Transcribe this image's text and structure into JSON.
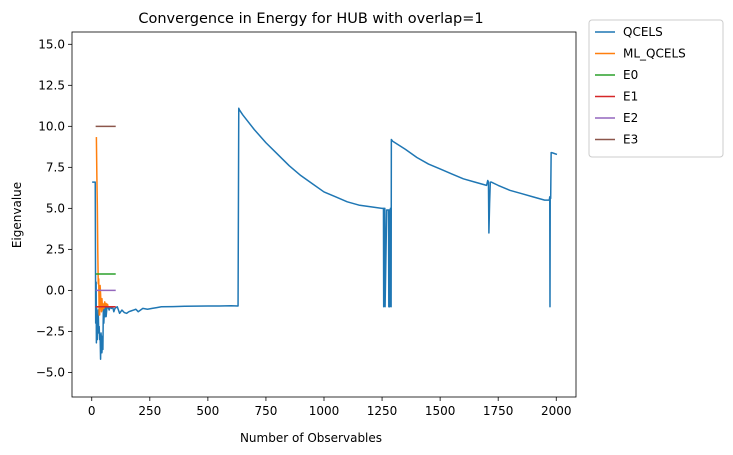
{
  "chart_data": {
    "type": "line",
    "title": "Convergence in Energy for HUB with overlap=1",
    "xlabel": "Number of Observables",
    "ylabel": "Eigenvalue",
    "xlim": [
      -85,
      2085
    ],
    "ylim": [
      -6.5,
      15.75
    ],
    "xticks": [
      0,
      250,
      500,
      750,
      1000,
      1250,
      1500,
      1750,
      2000
    ],
    "yticks": [
      -5.0,
      -2.5,
      0.0,
      2.5,
      5.0,
      7.5,
      10.0,
      12.5,
      15.0
    ],
    "xtick_labels": [
      "0",
      "250",
      "500",
      "750",
      "1000",
      "1250",
      "1500",
      "1750",
      "2000"
    ],
    "ytick_labels": [
      "−5.0",
      "−2.5",
      "0.0",
      "2.5",
      "5.0",
      "7.5",
      "10.0",
      "12.5",
      "15.0"
    ],
    "grid": false,
    "legend_position": "outside-top-right",
    "series": [
      {
        "name": "QCELS",
        "color": "#1f77b4",
        "x": [
          5,
          15,
          17,
          19,
          20,
          21,
          22,
          23,
          24,
          25,
          26,
          27,
          28,
          30,
          32,
          34,
          36,
          38,
          40,
          42,
          44,
          46,
          48,
          50,
          52,
          55,
          58,
          60,
          62,
          65,
          70,
          75,
          80,
          85,
          90,
          95,
          100,
          110,
          120,
          130,
          140,
          150,
          160,
          170,
          180,
          190,
          200,
          220,
          240,
          260,
          280,
          300,
          350,
          400,
          450,
          500,
          550,
          600,
          630,
          633,
          636,
          650,
          700,
          750,
          800,
          850,
          900,
          950,
          1000,
          1050,
          1100,
          1150,
          1200,
          1250,
          1256,
          1257,
          1258,
          1262,
          1263,
          1270,
          1278,
          1279,
          1280,
          1282,
          1283,
          1286,
          1288,
          1289,
          1290,
          1295,
          1350,
          1400,
          1450,
          1500,
          1550,
          1600,
          1650,
          1700,
          1705,
          1708,
          1710,
          1713,
          1716,
          1720,
          1750,
          1800,
          1850,
          1900,
          1950,
          1970,
          1972,
          1973,
          1974,
          1976,
          1978,
          1980,
          1990,
          2000
        ],
        "y": [
          6.6,
          6.6,
          -2.0,
          0.5,
          -3.2,
          -1.0,
          -2.5,
          -1.5,
          -3.0,
          -2.0,
          -1.8,
          -2.5,
          -1.2,
          -2.6,
          -2.2,
          -3.0,
          -2.7,
          -4.2,
          -2.6,
          -3.0,
          -3.8,
          -2.8,
          -3.6,
          -1.0,
          -2.0,
          -1.0,
          -1.6,
          -1.0,
          -1.6,
          -1.1,
          -1.0,
          -1.2,
          -1.0,
          -1.1,
          -1.0,
          -1.3,
          -1.1,
          -1.0,
          -1.4,
          -1.2,
          -1.35,
          -1.4,
          -1.3,
          -1.25,
          -1.2,
          -1.15,
          -1.3,
          -1.1,
          -1.15,
          -1.1,
          -1.05,
          -1.0,
          -0.99,
          -0.97,
          -0.96,
          -0.95,
          -0.95,
          -0.94,
          -0.95,
          11.1,
          11.0,
          10.7,
          9.8,
          9.0,
          8.3,
          7.6,
          7.0,
          6.5,
          6.0,
          5.7,
          5.4,
          5.2,
          5.1,
          5.0,
          5.0,
          -1.0,
          5.0,
          5.0,
          -1.0,
          4.9,
          4.9,
          -1.0,
          4.9,
          4.9,
          -1.0,
          5.0,
          5.0,
          -1.0,
          9.2,
          9.1,
          8.6,
          8.1,
          7.7,
          7.4,
          7.1,
          6.8,
          6.6,
          6.4,
          6.7,
          6.6,
          3.5,
          5.3,
          6.6,
          6.6,
          6.4,
          6.1,
          5.9,
          5.7,
          5.5,
          5.5,
          5.7,
          -1.0,
          5.6,
          5.6,
          8.4,
          8.4,
          8.35,
          8.3
        ]
      },
      {
        "name": "ML_QCELS",
        "color": "#ff7f0e",
        "x": [
          20,
          22,
          24,
          26,
          28,
          30,
          32,
          34,
          36,
          38,
          40,
          42,
          44,
          46,
          48,
          50,
          52,
          54,
          56,
          58,
          60,
          62,
          64,
          66,
          68,
          70
        ],
        "y": [
          9.3,
          7.0,
          5.2,
          2.4,
          0.4,
          0.7,
          -1.5,
          -1.5,
          0.3,
          -0.2,
          -1.0,
          -1.3,
          -0.5,
          -1.2,
          -0.8,
          -1.0,
          -1.1,
          -1.0,
          -0.7,
          -0.9,
          -1.0,
          -0.8,
          -1.0,
          -1.0,
          -0.85,
          -1.0
        ]
      },
      {
        "name": "E0",
        "color": "#2ca02c",
        "x": [
          20,
          100
        ],
        "y": [
          1.0,
          1.0
        ]
      },
      {
        "name": "E1",
        "color": "#d62728",
        "x": [
          20,
          100
        ],
        "y": [
          -1.0,
          -1.0
        ]
      },
      {
        "name": "E2",
        "color": "#9467bd",
        "x": [
          20,
          100
        ],
        "y": [
          0.0,
          0.0
        ]
      },
      {
        "name": "E3",
        "color": "#8c564b",
        "x": [
          20,
          100
        ],
        "y": [
          10.0,
          10.0
        ]
      }
    ]
  }
}
